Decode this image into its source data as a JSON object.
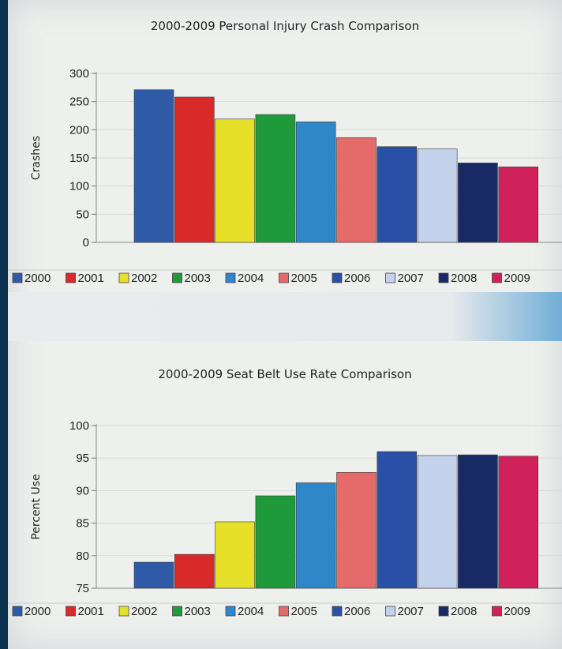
{
  "colors": {
    "page_bg": "#eef0ee",
    "frame": "#0b3350",
    "grid": "#d8dad8",
    "bar_palette": [
      "#2f5aa8",
      "#d92a2a",
      "#e6e02a",
      "#1f9a3a",
      "#2f86c8",
      "#e56a6a",
      "#2a4fa6",
      "#c3d2ea",
      "#172a66",
      "#d0215c"
    ]
  },
  "chart_data": [
    {
      "type": "bar",
      "title": "2000-2009  Personal Injury Crash Comparison",
      "xlabel": "",
      "ylabel": "Crashes",
      "categories": [
        "2000",
        "2001",
        "2002",
        "2003",
        "2004",
        "2005",
        "2006",
        "2007",
        "2008",
        "2009"
      ],
      "values": [
        271,
        258,
        219,
        227,
        214,
        186,
        170,
        166,
        141,
        134
      ],
      "ylim": [
        0,
        300
      ],
      "yticks": [
        "0",
        "50",
        "100",
        "150",
        "200",
        "250",
        "300"
      ],
      "grid": true,
      "legend": "bottom",
      "legend_entries": [
        "2000",
        "2001",
        "2002",
        "2003",
        "2004",
        "2005",
        "2006",
        "2007",
        "2008",
        "2009"
      ]
    },
    {
      "type": "bar",
      "title": "2000-2009 Seat Belt Use Rate Comparison",
      "xlabel": "",
      "ylabel": "Percent Use",
      "categories": [
        "2000",
        "2001",
        "2002",
        "2003",
        "2004",
        "2005",
        "2006",
        "2007",
        "2008",
        "2009"
      ],
      "values": [
        79.0,
        80.2,
        85.2,
        89.2,
        91.2,
        92.8,
        96.0,
        95.4,
        95.5,
        95.3
      ],
      "ylim": [
        75,
        100
      ],
      "yticks": [
        "75",
        "80",
        "85",
        "90",
        "95",
        "100"
      ],
      "grid": true,
      "legend": "bottom",
      "legend_entries": [
        "2000",
        "2001",
        "2002",
        "2003",
        "2004",
        "2005",
        "2006",
        "2007",
        "2008",
        "2009"
      ]
    }
  ]
}
